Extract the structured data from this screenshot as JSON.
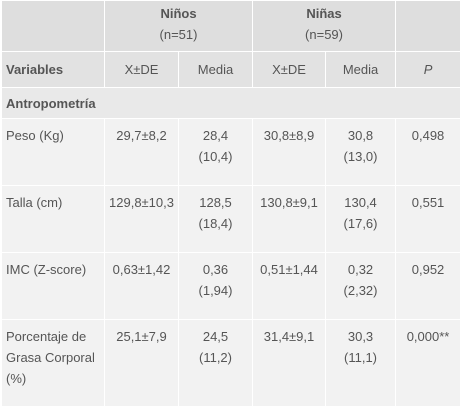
{
  "header": {
    "groups": [
      {
        "label": "Niños",
        "n": "(n=51)"
      },
      {
        "label": "Niñas",
        "n": "(n=59)"
      }
    ],
    "columns": [
      "Variables",
      "X±DE",
      "Media",
      "X±DE",
      "Media",
      "P"
    ]
  },
  "section": "Antropometría",
  "rows": [
    [
      "Peso (Kg)",
      "29,7±8,2",
      [
        "28,4",
        "(10,4)"
      ],
      "30,8±8,9",
      [
        "30,8",
        "(13,0)"
      ],
      "0,498"
    ],
    [
      "Talla (cm)",
      "129,8±10,3",
      [
        "128,5",
        "(18,4)"
      ],
      "130,8±9,1",
      [
        "130,4",
        "(17,6)"
      ],
      "0,551"
    ],
    [
      "IMC (Z-score)",
      "0,63±1,42",
      [
        "0,36",
        "(1,94)"
      ],
      "0,51±1,44",
      [
        "0,32",
        "(2,32)"
      ],
      "0,952"
    ],
    [
      "Porcentaje de Grasa Corporal (%)",
      "25,1±7,9",
      [
        "24,5",
        "(11,2)"
      ],
      "31,4±9,1",
      [
        "30,3",
        "(11,1)"
      ],
      "0,000**"
    ]
  ]
}
